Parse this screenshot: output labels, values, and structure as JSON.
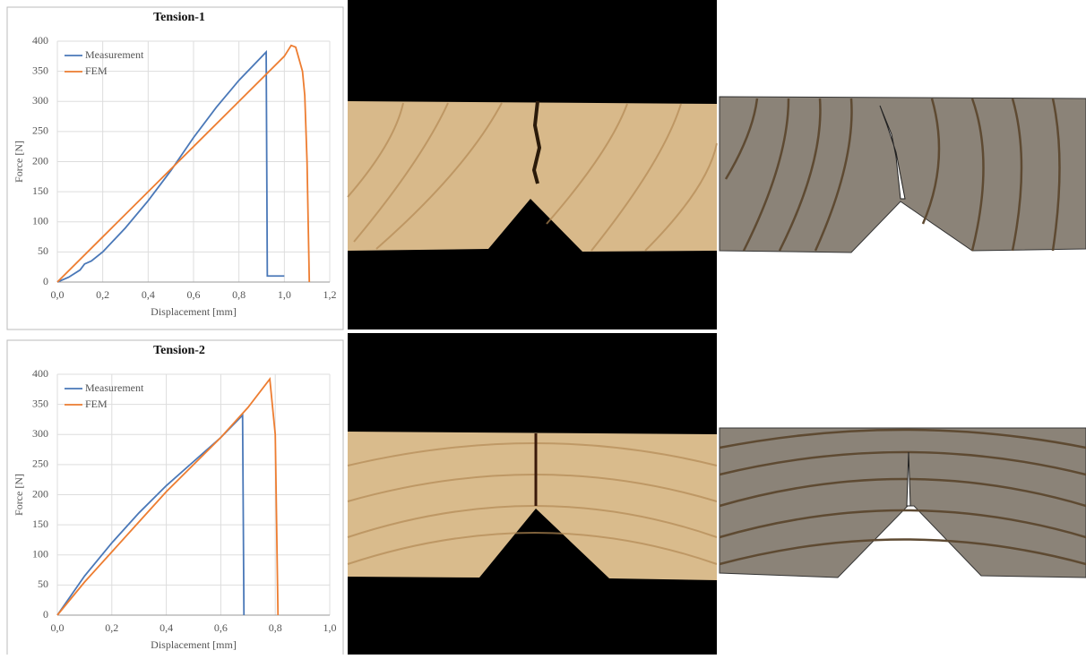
{
  "chart_data": [
    {
      "type": "line",
      "title": "Tension-1",
      "xlabel": "Displacement [mm]",
      "ylabel": "Force [N]",
      "xlim": [
        0,
        1.2
      ],
      "ylim": [
        0,
        400
      ],
      "xticks": [
        {
          "value": 0,
          "label": "0,0"
        },
        {
          "value": 0.2,
          "label": "0,2"
        },
        {
          "value": 0.4,
          "label": "0,4"
        },
        {
          "value": 0.6,
          "label": "0,6"
        },
        {
          "value": 0.8,
          "label": "0,8"
        },
        {
          "value": 1.0,
          "label": "1,0"
        },
        {
          "value": 1.2,
          "label": "1,2"
        }
      ],
      "yticks": [
        0,
        50,
        100,
        150,
        200,
        250,
        300,
        350,
        400
      ],
      "grid": true,
      "legend": "upper-left",
      "series": [
        {
          "name": "Measurement",
          "color": "#4a78b8",
          "x": [
            0,
            0.05,
            0.1,
            0.12,
            0.15,
            0.2,
            0.3,
            0.4,
            0.5,
            0.6,
            0.7,
            0.8,
            0.92,
            0.925,
            1.0
          ],
          "values": [
            0,
            8,
            20,
            30,
            35,
            50,
            90,
            135,
            185,
            240,
            290,
            335,
            382,
            10,
            10
          ]
        },
        {
          "name": "FEM",
          "color": "#ed7d31",
          "x": [
            0,
            0.2,
            0.4,
            0.6,
            0.8,
            1.0,
            1.03,
            1.05,
            1.08,
            1.09,
            1.1,
            1.11
          ],
          "values": [
            0,
            75,
            150,
            225,
            300,
            375,
            393,
            390,
            350,
            310,
            200,
            0
          ]
        }
      ]
    },
    {
      "type": "line",
      "title": "Tension-2",
      "xlabel": "Displacement [mm]",
      "ylabel": "Force [N]",
      "xlim": [
        0,
        1.0
      ],
      "ylim": [
        0,
        400
      ],
      "xticks": [
        {
          "value": 0,
          "label": "0,0"
        },
        {
          "value": 0.2,
          "label": "0,2"
        },
        {
          "value": 0.4,
          "label": "0,4"
        },
        {
          "value": 0.6,
          "label": "0,6"
        },
        {
          "value": 0.8,
          "label": "0,8"
        },
        {
          "value": 1.0,
          "label": "1,0"
        }
      ],
      "yticks": [
        0,
        50,
        100,
        150,
        200,
        250,
        300,
        350,
        400
      ],
      "grid": true,
      "legend": "upper-left",
      "series": [
        {
          "name": "Measurement",
          "color": "#4a78b8",
          "x": [
            0,
            0.1,
            0.2,
            0.3,
            0.4,
            0.5,
            0.6,
            0.68,
            0.685
          ],
          "values": [
            0,
            65,
            120,
            170,
            215,
            255,
            295,
            332,
            0
          ]
        },
        {
          "name": "FEM",
          "color": "#ed7d31",
          "x": [
            0,
            0.1,
            0.2,
            0.3,
            0.4,
            0.5,
            0.6,
            0.7,
            0.78,
            0.8,
            0.81
          ],
          "values": [
            0,
            55,
            105,
            155,
            205,
            250,
            295,
            345,
            392,
            300,
            0
          ]
        }
      ]
    }
  ]
}
